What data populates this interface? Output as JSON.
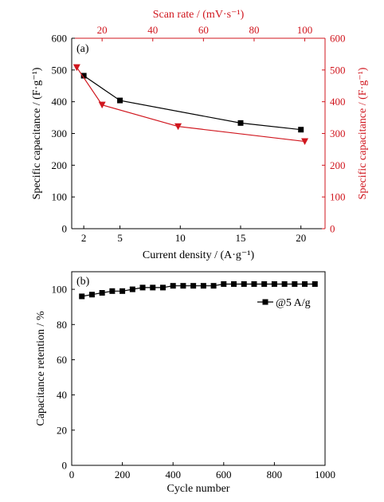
{
  "colors": {
    "black": "#000000",
    "red": "#d0161e"
  },
  "chart_data": [
    {
      "type": "line",
      "panel_label": "(a)",
      "xlabel": "Current density / (A·g⁻¹)",
      "ylabel": "Specific capacitance / (F·g⁻¹)",
      "x2label": "Scan rate / (mV·s⁻¹)",
      "y2label": "Specific capacitance / (F·g⁻¹)",
      "xlim": [
        1,
        22
      ],
      "ylim": [
        0,
        600
      ],
      "x2lim": [
        8,
        108
      ],
      "y2lim": [
        0,
        600
      ],
      "x_ticks": [
        2,
        5,
        10,
        15,
        20
      ],
      "y_ticks": [
        0,
        100,
        200,
        300,
        400,
        500,
        600
      ],
      "x2_ticks": [
        20,
        40,
        60,
        80,
        100
      ],
      "y2_ticks": [
        0,
        100,
        200,
        300,
        400,
        500,
        600
      ],
      "grid": false,
      "series": [
        {
          "axes": "bottom-left",
          "marker": "square",
          "color": "#000000",
          "x": [
            2,
            5,
            15,
            20
          ],
          "y": [
            482,
            404,
            333,
            312
          ]
        },
        {
          "axes": "top-right",
          "marker": "triangle-down",
          "color": "#d0161e",
          "x": [
            10,
            20,
            50,
            100
          ],
          "y": [
            508,
            390,
            322,
            275
          ]
        }
      ]
    },
    {
      "type": "line",
      "panel_label": "(b)",
      "xlabel": "Cycle number",
      "ylabel": "Capacitance retention / %",
      "xlim": [
        0,
        1000
      ],
      "ylim": [
        0,
        110
      ],
      "x_ticks": [
        0,
        200,
        400,
        600,
        800,
        1000
      ],
      "y_ticks": [
        0,
        20,
        40,
        60,
        80,
        100
      ],
      "grid": false,
      "legend_position": "top-right",
      "series": [
        {
          "name": "@5 A/g",
          "marker": "square",
          "color": "#000000",
          "x": [
            40,
            80,
            120,
            160,
            200,
            240,
            280,
            320,
            360,
            400,
            440,
            480,
            520,
            560,
            600,
            640,
            680,
            720,
            760,
            800,
            840,
            880,
            920,
            960
          ],
          "y": [
            96,
            97,
            98,
            99,
            99,
            100,
            101,
            101,
            101,
            102,
            102,
            102,
            102,
            102,
            103,
            103,
            103,
            103,
            103,
            103,
            103,
            103,
            103,
            103
          ]
        }
      ]
    }
  ]
}
